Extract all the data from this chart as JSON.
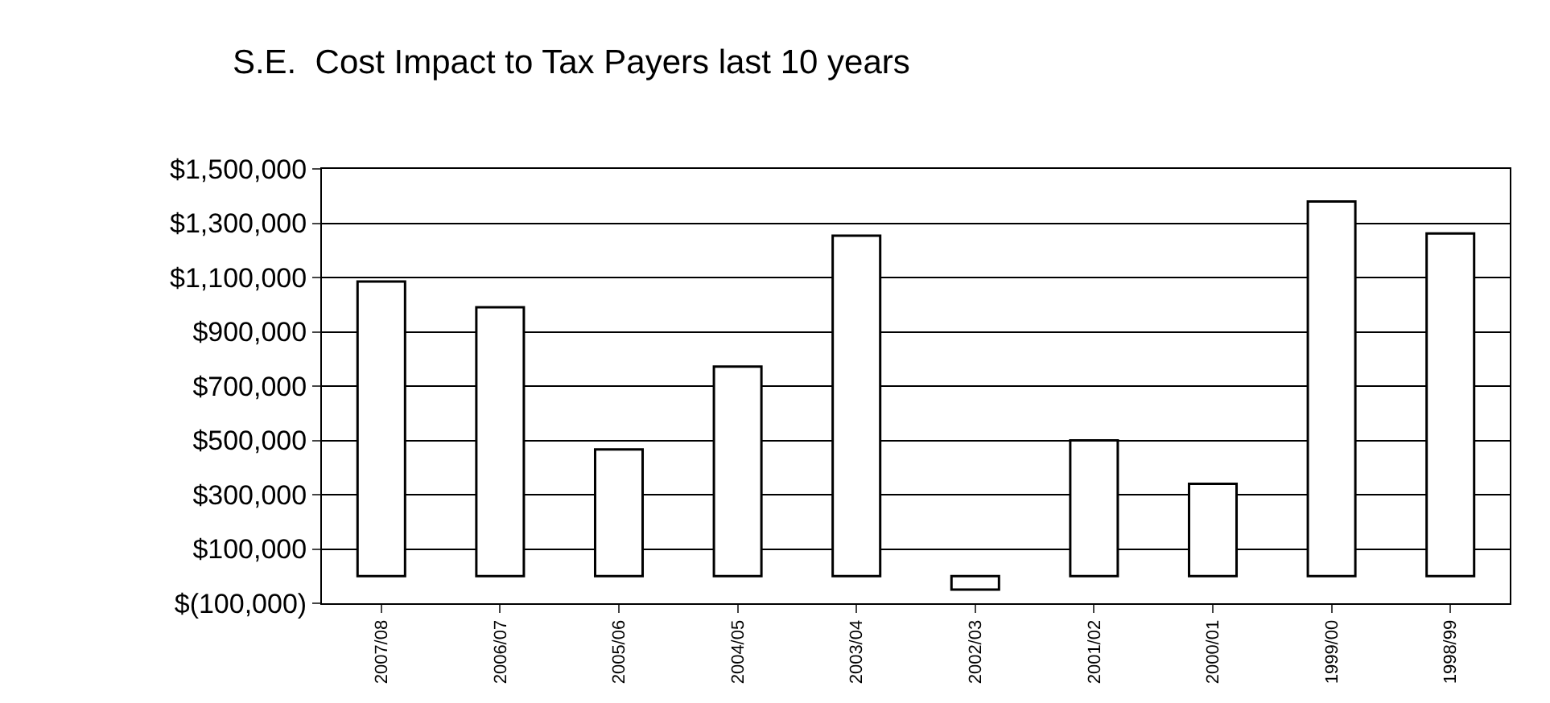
{
  "chart_data": {
    "type": "bar",
    "title": "S.E.  Cost Impact to Tax Payers last 10 years",
    "categories": [
      "2007/08",
      "2006/07",
      "2005/06",
      "2004/05",
      "2003/04",
      "2002/03",
      "2001/02",
      "2000/01",
      "1999/00",
      "1998/99"
    ],
    "values": [
      1085000,
      990000,
      467000,
      772000,
      1254000,
      -50000,
      500000,
      340000,
      1380000,
      1262000
    ],
    "color": "#ffffff",
    "ylim": [
      -100000,
      1500000
    ],
    "yticks": [
      {
        "value": -100000,
        "label": "$(100,000)"
      },
      {
        "value": 100000,
        "label": "$100,000"
      },
      {
        "value": 300000,
        "label": "$300,000"
      },
      {
        "value": 500000,
        "label": "$500,000"
      },
      {
        "value": 700000,
        "label": "$700,000"
      },
      {
        "value": 900000,
        "label": "$900,000"
      },
      {
        "value": 1100000,
        "label": "$1,100,000"
      },
      {
        "value": 1300000,
        "label": "$1,300,000"
      },
      {
        "value": 1500000,
        "label": "$1,500,000"
      }
    ],
    "grid": "y"
  }
}
